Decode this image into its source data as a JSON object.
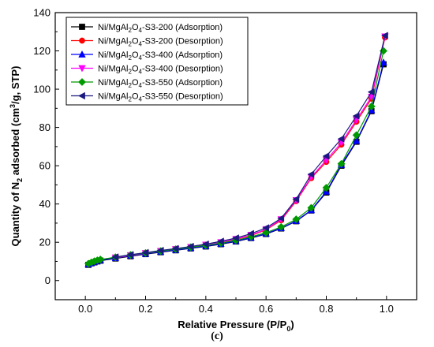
{
  "caption": "(c)",
  "chart_data": {
    "type": "line",
    "xlabel": "Relative Pressure (P/P",
    "xlabel_sub": "0",
    "xlabel_end": ")",
    "ylabel_parts": [
      "Quantity of N",
      "2",
      " adsorbed (cm",
      "3",
      "/g, STP)"
    ],
    "xlim": [
      -0.1,
      1.1
    ],
    "ylim": [
      -10,
      140
    ],
    "xticks": [
      0.0,
      0.2,
      0.4,
      0.6,
      0.8,
      1.0
    ],
    "xtick_labels": [
      "0.0",
      "0.2",
      "0.4",
      "0.6",
      "0.8",
      "1.0"
    ],
    "yticks": [
      0,
      20,
      40,
      60,
      80,
      100,
      120,
      140
    ],
    "ytick_labels": [
      "0",
      "20",
      "40",
      "60",
      "80",
      "100",
      "120",
      "140"
    ],
    "grid": false,
    "legend_position": "top-left",
    "series": [
      {
        "name": "Ni/MgAl2O4-S3-200 (Adsorption)",
        "legend_parts": [
          "Ni/MgAl",
          "2",
          "O",
          "4",
          "-S3-200 (Adsorption)"
        ],
        "color": "#000000",
        "marker": "square",
        "x": [
          0.01,
          0.02,
          0.03,
          0.04,
          0.05,
          0.1,
          0.15,
          0.2,
          0.25,
          0.3,
          0.35,
          0.4,
          0.45,
          0.5,
          0.55,
          0.6,
          0.65,
          0.7,
          0.75,
          0.8,
          0.85,
          0.9,
          0.95,
          0.99
        ],
        "y": [
          8.2,
          9.0,
          9.5,
          10.0,
          10.4,
          11.5,
          12.7,
          13.8,
          14.8,
          15.8,
          16.8,
          17.8,
          19.0,
          20.4,
          22.2,
          24.3,
          27.2,
          31.0,
          36.6,
          46.0,
          60.0,
          72.5,
          88.5,
          113.0
        ]
      },
      {
        "name": "Ni/MgAl2O4-S3-200 (Desorption)",
        "legend_parts": [
          "Ni/MgAl",
          "2",
          "O",
          "4",
          "-S3-200 (Desorption)"
        ],
        "color": "#ff0000",
        "marker": "circle",
        "x": [
          0.995,
          0.95,
          0.9,
          0.85,
          0.8,
          0.75,
          0.7,
          0.65,
          0.6,
          0.55,
          0.5,
          0.45,
          0.4,
          0.35,
          0.3,
          0.25,
          0.2,
          0.15,
          0.1
        ],
        "y": [
          127.0,
          95.0,
          83.0,
          71.0,
          62.0,
          53.5,
          41.5,
          31.5,
          26.5,
          23.5,
          21.5,
          19.8,
          18.5,
          17.3,
          16.2,
          15.2,
          14.1,
          13.0,
          11.8
        ]
      },
      {
        "name": "Ni/MgAl2O4-S3-400 (Adsorption)",
        "legend_parts": [
          "Ni/MgAl",
          "2",
          "O",
          "4",
          "-S3-400 (Adsorption)"
        ],
        "color": "#0000ff",
        "marker": "triangle-up",
        "x": [
          0.01,
          0.02,
          0.03,
          0.04,
          0.05,
          0.1,
          0.15,
          0.2,
          0.25,
          0.3,
          0.35,
          0.4,
          0.45,
          0.5,
          0.55,
          0.6,
          0.65,
          0.7,
          0.75,
          0.8,
          0.85,
          0.9,
          0.95,
          0.99
        ],
        "y": [
          8.5,
          9.2,
          9.8,
          10.3,
          10.7,
          11.8,
          13.0,
          14.0,
          15.0,
          16.0,
          17.0,
          18.0,
          19.2,
          20.6,
          22.4,
          24.5,
          27.4,
          31.2,
          36.8,
          46.5,
          60.5,
          73.0,
          89.0,
          114.0
        ]
      },
      {
        "name": "Ni/MgAl2O4-S3-400 (Desorption)",
        "legend_parts": [
          "Ni/MgAl",
          "2",
          "O",
          "4",
          "-S3-400 (Desorption)"
        ],
        "color": "#ff00ff",
        "marker": "triangle-down",
        "x": [
          0.995,
          0.95,
          0.9,
          0.85,
          0.8,
          0.75,
          0.7,
          0.65,
          0.6,
          0.55,
          0.5,
          0.45,
          0.4,
          0.35,
          0.3,
          0.25,
          0.2,
          0.15,
          0.1
        ],
        "y": [
          127.5,
          96.0,
          84.0,
          72.0,
          63.0,
          54.0,
          42.0,
          32.0,
          26.8,
          23.8,
          21.7,
          20.0,
          18.7,
          17.5,
          16.4,
          15.4,
          14.3,
          13.2,
          12.0
        ]
      },
      {
        "name": "Ni/MgAl2O4-S3-550 (Adsorption)",
        "legend_parts": [
          "Ni/MgAl",
          "2",
          "O",
          "4",
          "-S3-550 (Adsorption)"
        ],
        "color": "#009900",
        "marker": "diamond",
        "x": [
          0.01,
          0.02,
          0.03,
          0.04,
          0.05,
          0.1,
          0.15,
          0.2,
          0.25,
          0.3,
          0.35,
          0.4,
          0.45,
          0.5,
          0.55,
          0.6,
          0.65,
          0.7,
          0.75,
          0.8,
          0.85,
          0.9,
          0.95,
          0.99
        ],
        "y": [
          8.8,
          9.5,
          10.1,
          10.6,
          11.0,
          12.2,
          13.4,
          14.4,
          15.4,
          16.4,
          17.4,
          18.4,
          19.6,
          21.0,
          22.9,
          25.0,
          28.0,
          32.0,
          38.0,
          48.5,
          61.0,
          76.0,
          91.0,
          120.0
        ]
      },
      {
        "name": "Ni/MgAl2O4-S3-550 (Desorption)",
        "legend_parts": [
          "Ni/MgAl",
          "2",
          "O",
          "4",
          "-S3-550 (Desorption)"
        ],
        "color": "#1a1a80",
        "marker": "triangle-left",
        "x": [
          0.995,
          0.95,
          0.9,
          0.85,
          0.8,
          0.75,
          0.7,
          0.65,
          0.6,
          0.55,
          0.5,
          0.45,
          0.4,
          0.35,
          0.3,
          0.25,
          0.2,
          0.15,
          0.1
        ],
        "y": [
          128.0,
          98.5,
          86.0,
          74.0,
          65.0,
          55.5,
          42.5,
          32.5,
          27.5,
          24.5,
          22.2,
          20.5,
          19.0,
          17.8,
          16.7,
          15.7,
          14.6,
          13.5,
          12.3
        ]
      }
    ]
  }
}
